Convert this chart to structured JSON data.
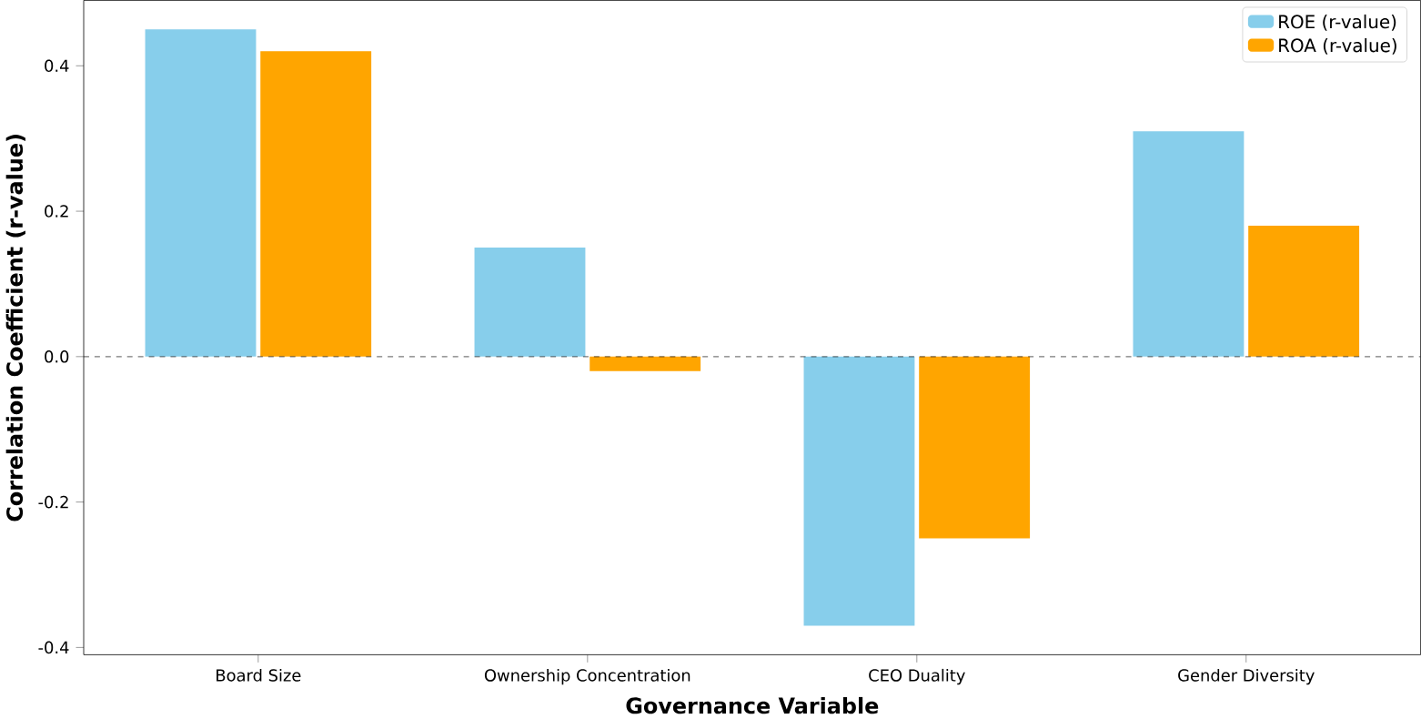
{
  "chart_data": {
    "type": "bar",
    "xlabel": "Governance Variable",
    "ylabel": "Correlation Coefficient (r-value)",
    "categories": [
      "Board Size",
      "Ownership Concentration",
      "CEO Duality",
      "Gender Diversity"
    ],
    "series": [
      {
        "name": "ROE (r-value)",
        "color": "#87ceeb",
        "values": [
          0.45,
          0.15,
          -0.37,
          0.31
        ]
      },
      {
        "name": "ROA (r-value)",
        "color": "#ffa500",
        "values": [
          0.42,
          -0.02,
          -0.25,
          0.18
        ]
      }
    ],
    "ylim": [
      -0.41,
      0.49
    ],
    "yticks": [
      -0.4,
      -0.2,
      {
        "value": 0,
        "label": "0.0"
      },
      0.2,
      0.4
    ],
    "ref_lines": [
      {
        "axis": "y",
        "value": 0,
        "color": "#000000",
        "line_style": "dashed"
      }
    ],
    "legend": "top right",
    "grid": false
  }
}
